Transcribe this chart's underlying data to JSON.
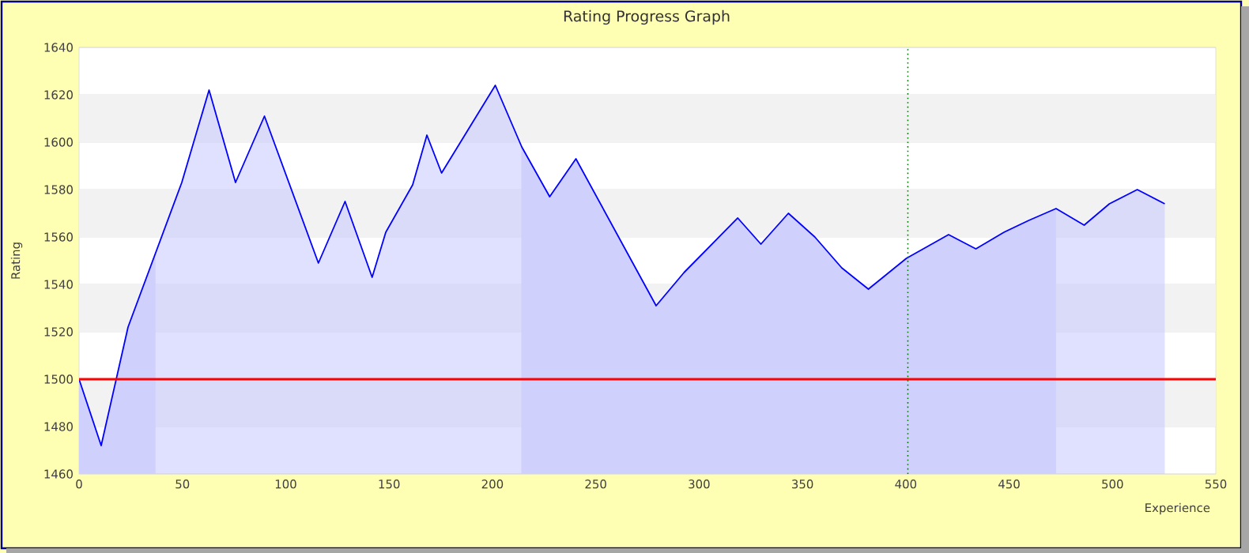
{
  "chart_data": {
    "type": "area",
    "title": "Rating Progress Graph",
    "xlabel": "Experience",
    "ylabel": "Rating",
    "series": [
      {
        "type": "area",
        "color": "#0000ff",
        "x": [
          0,
          10.7,
          23.7,
          49.7,
          62.9,
          75.7,
          89.7,
          115.8,
          128.7,
          141.8,
          148.4,
          161.4,
          168.3,
          175.4,
          201.4,
          214.2,
          227.7,
          240.4,
          279.2,
          292.7,
          318.7,
          329.9,
          343.2,
          356,
          369,
          381.9,
          400.3,
          420.7,
          433.9,
          447.5,
          459.5,
          472.7,
          486.3,
          498.5,
          512,
          525.3
        ],
        "values": [
          1500,
          1472,
          1522,
          1583,
          1622,
          1583,
          1611,
          1549,
          1575,
          1543,
          1562,
          1582,
          1603,
          1587,
          1624,
          1598,
          1577,
          1593,
          1531,
          1545,
          1568,
          1557,
          1570,
          1560,
          1547,
          1538,
          1551,
          1561,
          1555,
          1562,
          1567,
          1572,
          1565,
          1574,
          1580,
          1574
        ]
      }
    ],
    "xlim": [
      0,
      550
    ],
    "ylim": [
      1460,
      1640
    ],
    "xticks": [
      0,
      50,
      100,
      150,
      200,
      250,
      300,
      350,
      400,
      450,
      500,
      550
    ],
    "yticks": [
      1460,
      1480,
      1500,
      1520,
      1540,
      1560,
      1580,
      1600,
      1620,
      1640
    ],
    "grid": "y",
    "ref_lines": [
      {
        "axis": "y",
        "value": 1500,
        "color": "#ff0000",
        "line_style": "solid"
      },
      {
        "axis": "x",
        "value": 401,
        "color": "#007700",
        "line_style": "dotted"
      }
    ],
    "bands": [
      {
        "axis": "x",
        "from": 0,
        "to": 37,
        "color": "#d0d0fc"
      },
      {
        "axis": "x",
        "from": 214,
        "to": 472.7,
        "color": "#d0d0fc"
      }
    ]
  }
}
